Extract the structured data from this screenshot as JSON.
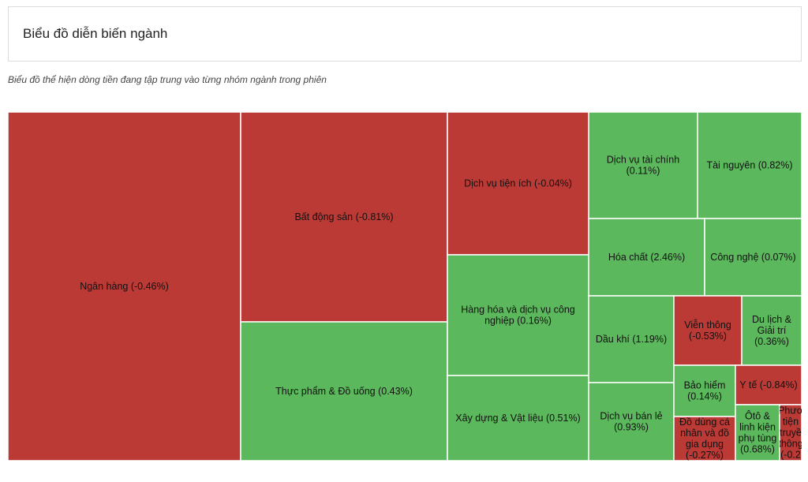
{
  "header": {
    "title": "Biểu đồ diễn biến ngành",
    "subtitle": "Biểu đồ thể hiện dòng tiền đang tập trung vào từng nhóm ngành trong phiên"
  },
  "colors": {
    "positive": "#5cb85c",
    "negative": "#bb3a35"
  },
  "chart_data": {
    "type": "treemap",
    "tiles": [
      {
        "name": "Ngân hàng",
        "change": -0.46,
        "lines": [
          "Ngân hàng (-0.46%)"
        ]
      },
      {
        "name": "Bất động sản",
        "change": -0.81,
        "lines": [
          "Bất động sản (-0.81%)"
        ]
      },
      {
        "name": "Thực phẩm & Đồ uống",
        "change": 0.43,
        "lines": [
          "Thực phẩm & Đồ uống (0.43%)"
        ]
      },
      {
        "name": "Dịch vụ tiện ích",
        "change": -0.04,
        "lines": [
          "Dịch vụ tiện ích (-0.04%)"
        ]
      },
      {
        "name": "Hàng hóa và dịch vụ công nghiệp",
        "change": 0.16,
        "lines": [
          "Hàng hóa và dịch vụ công",
          "nghiệp (0.16%)"
        ]
      },
      {
        "name": "Xây dựng & Vật liệu",
        "change": 0.51,
        "lines": [
          "Xây dựng & Vật liệu (0.51%)"
        ]
      },
      {
        "name": "Dịch vụ tài chính",
        "change": 0.11,
        "lines": [
          "Dịch vụ tài chính",
          "(0.11%)"
        ]
      },
      {
        "name": "Tài nguyên",
        "change": 0.82,
        "lines": [
          "Tài nguyên (0.82%)"
        ]
      },
      {
        "name": "Hóa chất",
        "change": 2.46,
        "lines": [
          "Hóa chất (2.46%)"
        ]
      },
      {
        "name": "Công nghệ",
        "change": 0.07,
        "lines": [
          "Công nghệ (0.07%)"
        ]
      },
      {
        "name": "Dầu khí",
        "change": 1.19,
        "lines": [
          "Dầu khí (1.19%)"
        ]
      },
      {
        "name": "Dịch vụ bán lẻ",
        "change": 0.93,
        "lines": [
          "Dịch vụ bán lẻ",
          "(0.93%)"
        ]
      },
      {
        "name": "Viễn thông",
        "change": -0.53,
        "lines": [
          "Viễn thông",
          "(-0.53%)"
        ]
      },
      {
        "name": "Du lịch & Giải trí",
        "change": 0.36,
        "lines": [
          "Du lịch &",
          "Giải trí",
          "(0.36%)"
        ]
      },
      {
        "name": "Bảo hiểm",
        "change": 0.14,
        "lines": [
          "Bảo hiểm",
          "(0.14%)"
        ]
      },
      {
        "name": "Y tế",
        "change": -0.84,
        "lines": [
          "Y tế (-0.84%)"
        ]
      },
      {
        "name": "Đồ dùng cá nhân và đồ gia dụng",
        "change": -0.27,
        "lines": [
          "Đồ dùng cá",
          "nhân và đồ",
          "gia dụng",
          "(-0.27%)"
        ]
      },
      {
        "name": "Ôtô & linh kiện phụ tùng",
        "change": 0.68,
        "lines": [
          "Ôtô &",
          "linh kiện",
          "phụ tùng",
          "(0.68%)"
        ]
      },
      {
        "name": "Phương tiện truyền thông",
        "change": -0.2,
        "lines": [
          "Phươ",
          "tiện",
          "truyề",
          "thông",
          "(-0.2"
        ]
      }
    ]
  }
}
